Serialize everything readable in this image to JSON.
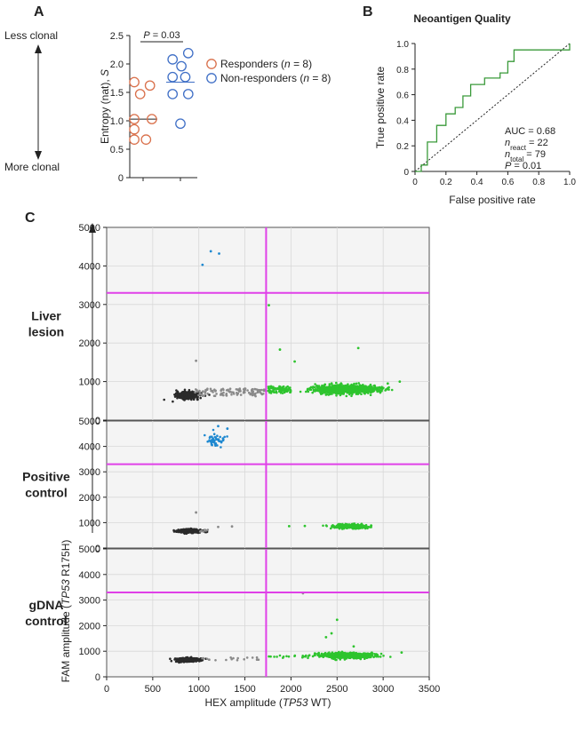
{
  "figure": {
    "panel_labels": {
      "a": "A",
      "b": "B",
      "c": "C"
    }
  },
  "chart_data": [
    {
      "id": "A",
      "type": "scatter",
      "title": "",
      "ylabel": "Entropy (nat), ",
      "ylabel_var": "S",
      "ylim": [
        0,
        2.5
      ],
      "yticks": [
        0,
        0.5,
        1.0,
        1.5,
        2.0,
        2.5
      ],
      "ytick_labels": [
        "0",
        "0.5",
        "1.0",
        "1.5",
        "2.0",
        "2.5"
      ],
      "arrow_top_label": "Less clonal",
      "arrow_bottom_label": "More clonal",
      "pvalue_label": "P = 0.03",
      "pvalue_prefix": "P",
      "pvalue_rest": " = 0.03",
      "series": [
        {
          "name": "Responders",
          "legend_prefix": "Responders (",
          "legend_n": "n",
          "legend_suffix": " = 8)",
          "color": "#d9704b",
          "median": 1.03,
          "points": [
            [
              -0.45,
              1.68
            ],
            [
              -0.15,
              1.47
            ],
            [
              0.35,
              1.62
            ],
            [
              -0.45,
              1.03
            ],
            [
              0.45,
              1.03
            ],
            [
              -0.45,
              0.85
            ],
            [
              -0.45,
              0.67
            ],
            [
              0.15,
              0.67
            ]
          ]
        },
        {
          "name": "Non-responders",
          "legend_prefix": "Non-responders (",
          "legend_n": "n",
          "legend_suffix": " = 8)",
          "color": "#3f6fc6",
          "median": 1.68,
          "points": [
            [
              0.4,
              2.19
            ],
            [
              -0.4,
              2.08
            ],
            [
              0.05,
              1.96
            ],
            [
              -0.4,
              1.77
            ],
            [
              0.25,
              1.77
            ],
            [
              -0.4,
              1.47
            ],
            [
              0.4,
              1.47
            ],
            [
              0.0,
              0.95
            ]
          ]
        }
      ]
    },
    {
      "id": "B",
      "type": "line",
      "title": "Neoantigen Quality",
      "xlabel": "False positive rate",
      "ylabel": "True positive  rate",
      "xlim": [
        0,
        1
      ],
      "ylim": [
        0,
        1
      ],
      "xticks": [
        0,
        0.2,
        0.4,
        0.6,
        0.8,
        1.0
      ],
      "xtick_labels": [
        "0",
        "0.2",
        "0.4",
        "0.6",
        "0.8",
        "1.0"
      ],
      "yticks": [
        0,
        0.2,
        0.4,
        0.6,
        0.8,
        1.0
      ],
      "ytick_labels": [
        "0",
        "0.2",
        "0.4",
        "0.6",
        "0.8",
        "1.0"
      ],
      "roc_color": "#3a9a3a",
      "roc": [
        [
          0,
          0
        ],
        [
          0.04,
          0
        ],
        [
          0.04,
          0.05
        ],
        [
          0.08,
          0.05
        ],
        [
          0.08,
          0.23
        ],
        [
          0.14,
          0.23
        ],
        [
          0.14,
          0.36
        ],
        [
          0.2,
          0.36
        ],
        [
          0.2,
          0.45
        ],
        [
          0.26,
          0.45
        ],
        [
          0.26,
          0.5
        ],
        [
          0.31,
          0.5
        ],
        [
          0.31,
          0.59
        ],
        [
          0.36,
          0.59
        ],
        [
          0.36,
          0.68
        ],
        [
          0.45,
          0.68
        ],
        [
          0.45,
          0.73
        ],
        [
          0.55,
          0.73
        ],
        [
          0.55,
          0.77
        ],
        [
          0.6,
          0.77
        ],
        [
          0.6,
          0.86
        ],
        [
          0.64,
          0.86
        ],
        [
          0.64,
          0.95
        ],
        [
          1.0,
          0.95
        ],
        [
          1.0,
          1.0
        ]
      ],
      "annotations": {
        "auc": "AUC = 0.68",
        "n_react_base": "n",
        "n_react_sub": "react",
        "n_react_val": " = 22",
        "n_total_base": "n",
        "n_total_sub": "total",
        "n_total_val": " = 79",
        "p_base": "P",
        "p_val": " = 0.01"
      }
    },
    {
      "id": "C",
      "type": "scatter",
      "xlabel_prefix": "HEX amplitude  (",
      "xlabel_gene": "TP53",
      "xlabel_suffix": " WT)",
      "ylabel_prefix": "FAM amplitude (",
      "ylabel_gene": "TP53",
      "ylabel_suffix": " R175H)",
      "xlim": [
        0,
        3500
      ],
      "ylim": [
        0,
        5000
      ],
      "xticks": [
        0,
        500,
        1000,
        1500,
        2000,
        2500,
        3000,
        3500
      ],
      "xtick_labels": [
        "0",
        "500",
        "1000",
        "1500",
        "2000",
        "2500",
        "3000",
        "3500"
      ],
      "yticks": [
        0,
        1000,
        2000,
        3000,
        4000,
        5000
      ],
      "ytick_labels": [
        "0",
        "1000",
        "2000",
        "3000",
        "4000",
        "5000"
      ],
      "threshold_x": 1730,
      "threshold_y": 3300,
      "threshold_color": "#e040e8",
      "colors": {
        "double_negative": "#2a2a2a",
        "mixed": "#8a8a8a",
        "hex_positive": "#2ec42e",
        "fam_positive": "#1e88d0"
      },
      "panels": [
        {
          "label_line1": "Liver",
          "label_line2": "lesion",
          "clusters": [
            {
              "kind": "double_negative",
              "cx": 880,
              "cy": 640,
              "sx": 60,
              "sy": 45,
              "n": 380
            },
            {
              "kind": "mixed",
              "x0": 960,
              "x1": 1720,
              "y0": 620,
              "y1": 820,
              "n": 110
            },
            {
              "kind": "hex_positive",
              "cx": 2600,
              "cy": 800,
              "sx": 170,
              "sy": 55,
              "n": 900
            },
            {
              "kind": "hex_positive",
              "x0": 1740,
              "x1": 2000,
              "y0": 700,
              "y1": 880,
              "n": 80
            }
          ],
          "outliers": [
            {
              "kind": "fam_positive",
              "x": 1130,
              "y": 4380
            },
            {
              "kind": "fam_positive",
              "x": 1220,
              "y": 4320
            },
            {
              "kind": "fam_positive",
              "x": 1040,
              "y": 4030
            },
            {
              "kind": "mixed",
              "x": 970,
              "y": 1540
            },
            {
              "kind": "hex_positive",
              "x": 1760,
              "y": 2980
            },
            {
              "kind": "hex_positive",
              "x": 1880,
              "y": 1830
            },
            {
              "kind": "hex_positive",
              "x": 2040,
              "y": 1520
            },
            {
              "kind": "hex_positive",
              "x": 2730,
              "y": 1870
            },
            {
              "kind": "hex_positive",
              "x": 3180,
              "y": 1000
            },
            {
              "kind": "hex_positive",
              "x": 3050,
              "y": 950
            }
          ]
        },
        {
          "label_line1": "Positive",
          "label_line2": "control",
          "clusters": [
            {
              "kind": "double_negative",
              "cx": 900,
              "cy": 670,
              "sx": 65,
              "sy": 35,
              "n": 320
            },
            {
              "kind": "mixed",
              "x0": 1010,
              "x1": 1100,
              "y0": 640,
              "y1": 720,
              "n": 8
            },
            {
              "kind": "fam_positive",
              "cx": 1180,
              "cy": 4250,
              "sx": 50,
              "sy": 120,
              "n": 45
            },
            {
              "kind": "hex_positive",
              "cx": 2650,
              "cy": 850,
              "sx": 95,
              "sy": 40,
              "n": 300
            }
          ],
          "outliers": [
            {
              "kind": "mixed",
              "x": 970,
              "y": 1400
            },
            {
              "kind": "mixed",
              "x": 1210,
              "y": 830
            },
            {
              "kind": "mixed",
              "x": 1360,
              "y": 850
            },
            {
              "kind": "hex_positive",
              "x": 1980,
              "y": 860
            },
            {
              "kind": "hex_positive",
              "x": 2150,
              "y": 870
            },
            {
              "kind": "fam_positive",
              "x": 1310,
              "y": 4700
            },
            {
              "kind": "fam_positive",
              "x": 1210,
              "y": 4800
            }
          ]
        },
        {
          "label_line1": "gDNA",
          "label_line2": "control",
          "clusters": [
            {
              "kind": "double_negative",
              "cx": 880,
              "cy": 660,
              "sx": 65,
              "sy": 38,
              "n": 380
            },
            {
              "kind": "mixed",
              "x0": 1030,
              "x1": 1700,
              "y0": 640,
              "y1": 780,
              "n": 18
            },
            {
              "kind": "hex_positive",
              "cx": 2600,
              "cy": 830,
              "sx": 140,
              "sy": 50,
              "n": 700
            },
            {
              "kind": "hex_positive",
              "x0": 1760,
              "x1": 2200,
              "y0": 740,
              "y1": 860,
              "n": 18
            }
          ],
          "outliers": [
            {
              "kind": "hex_positive",
              "x": 2500,
              "y": 2230
            },
            {
              "kind": "hex_positive",
              "x": 2440,
              "y": 1700
            },
            {
              "kind": "hex_positive",
              "x": 2380,
              "y": 1550
            },
            {
              "kind": "hex_positive",
              "x": 2680,
              "y": 1190
            },
            {
              "kind": "hex_positive",
              "x": 3200,
              "y": 950
            },
            {
              "kind": "mixed",
              "x": 2130,
              "y": 3270
            }
          ]
        }
      ]
    }
  ]
}
